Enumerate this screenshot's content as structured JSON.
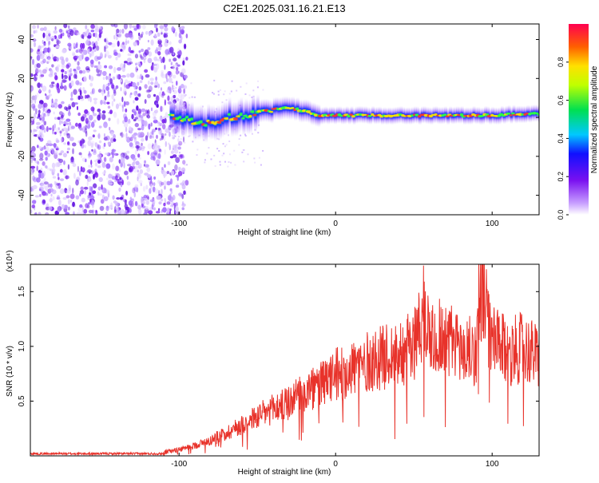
{
  "title": "C2E1.2025.031.16.21.E13",
  "chart_data": [
    {
      "type": "heatmap",
      "xlabel": "Height of straight line (km)",
      "ylabel": "Frequency (Hz)",
      "xlim": [
        -195,
        130
      ],
      "ylim": [
        -50,
        48
      ],
      "x_ticks": [
        -100,
        0,
        100
      ],
      "x_tick_labels": [
        "-100",
        "0",
        "100"
      ],
      "y_ticks": [
        -40,
        -20,
        0,
        20,
        40
      ],
      "y_tick_labels": [
        "-40",
        "-20",
        "0",
        "20",
        "40"
      ],
      "colorbar": {
        "label": "Normalized spectral amplitude",
        "range": [
          0,
          1
        ],
        "ticks": [
          0.0,
          0.2,
          0.4,
          0.6,
          0.8
        ],
        "tick_labels": [
          "0.0",
          "0.2",
          "0.4",
          "0.6",
          "0.8"
        ]
      },
      "ridge": {
        "x": [
          -105,
          -90,
          -80,
          -70,
          -60,
          -50,
          -40,
          -30,
          -20,
          -10,
          0,
          20,
          40,
          60,
          80,
          100,
          120,
          130
        ],
        "frequency": [
          0,
          -2,
          -3,
          0,
          1,
          2,
          4,
          5,
          3,
          1,
          1,
          1,
          1,
          1,
          1,
          1,
          2,
          2
        ]
      },
      "noise_region_x": [
        -195,
        -105
      ]
    },
    {
      "type": "line",
      "xlabel": "Height of straight line (km)",
      "ylabel": "SNR (10 * v/v)",
      "y_scale_label": "(x10⁴)",
      "xlim": [
        -195,
        130
      ],
      "ylim": [
        0,
        1.75
      ],
      "x_ticks": [
        -100,
        0,
        100
      ],
      "x_tick_labels": [
        "-100",
        "0",
        "100"
      ],
      "y_ticks": [
        0.5,
        1.0,
        1.5
      ],
      "y_tick_labels": [
        "0.5",
        "1.0",
        "1.5"
      ],
      "color": "#e8322a",
      "series": [
        {
          "x": [
            -195,
            -180,
            -160,
            -140,
            -120,
            -110,
            -100,
            -90,
            -80,
            -70,
            -60,
            -50,
            -40,
            -30,
            -20,
            -10,
            -5,
            0,
            10,
            20,
            30,
            40,
            50,
            55,
            60,
            70,
            80,
            90,
            92,
            100,
            110,
            120,
            130
          ],
          "values": [
            0.02,
            0.02,
            0.02,
            0.02,
            0.02,
            0.03,
            0.06,
            0.1,
            0.15,
            0.22,
            0.3,
            0.38,
            0.45,
            0.52,
            0.6,
            0.68,
            0.72,
            0.78,
            0.85,
            0.9,
            0.95,
            1.0,
            1.05,
            1.45,
            1.2,
            1.15,
            1.05,
            1.0,
            1.72,
            1.1,
            1.0,
            1.05,
            0.95
          ]
        }
      ]
    }
  ]
}
